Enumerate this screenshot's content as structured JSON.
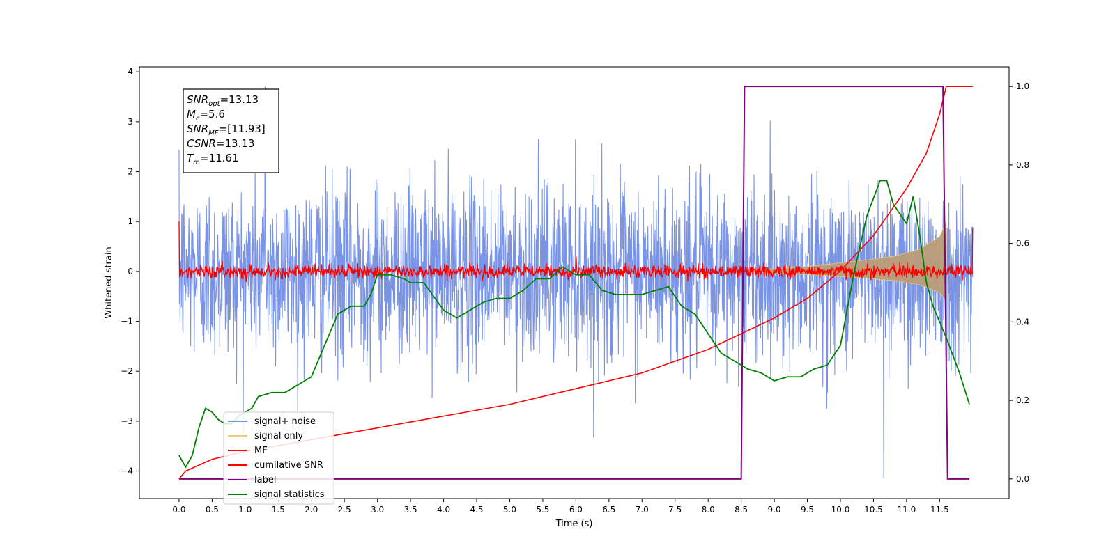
{
  "chart_data": {
    "type": "line",
    "xlabel": "Time (s)",
    "ylabel_left": "Whitened strain",
    "xlim": [
      -0.6,
      12.55
    ],
    "ylim_left": [
      -4.55,
      4.1
    ],
    "ylim_right": [
      -0.05,
      1.05
    ],
    "x_ticks": [
      "0.0",
      "0.5",
      "1.0",
      "1.5",
      "2.0",
      "2.5",
      "3.0",
      "3.5",
      "4.0",
      "4.5",
      "5.0",
      "5.5",
      "6.0",
      "6.5",
      "7.0",
      "7.5",
      "8.0",
      "8.5",
      "9.0",
      "9.5",
      "10.0",
      "10.5",
      "11.0",
      "11.5"
    ],
    "y_ticks_left": [
      "4",
      "3",
      "2",
      "1",
      "0",
      "−1",
      "−2",
      "−3",
      "−4"
    ],
    "y_ticks_right": [
      "1.0",
      "0.8",
      "0.6",
      "0.4",
      "0.2",
      "0.0"
    ],
    "grid": false,
    "legend_position": "lower-left",
    "colors": {
      "signal_noise": "#7994e6",
      "signal_only": "#f5c97a",
      "signal_fill": "#bb9d78",
      "mf": "#ff0000",
      "cumulative_snr": "#ff0000",
      "label": "#800080",
      "signal_statistics": "#008000"
    },
    "annotation": {
      "lines": [
        {
          "base": "SNR",
          "sub": "opt",
          "value": "=13.13"
        },
        {
          "base": "M",
          "sub": "c",
          "value": "=5.6"
        },
        {
          "base": "SNR",
          "sub": "MF",
          "value": "=[11.93]"
        },
        {
          "base": "CSNR",
          "sub": "",
          "value": "=13.13"
        },
        {
          "base": "T",
          "sub": "m",
          "value": "=11.61"
        }
      ]
    },
    "series": [
      {
        "name": "signal+ noise",
        "axis": "left",
        "kind": "noise_band",
        "x_range": [
          0.0,
          12.0
        ],
        "envelope_upper": 2.2,
        "envelope_lower": -2.3,
        "max": 3.7,
        "min": -4.15
      },
      {
        "name": "signal only",
        "axis": "left",
        "kind": "chirp_envelope",
        "x": [
          8.6,
          9.5,
          10.2,
          10.8,
          11.2,
          11.5,
          11.6
        ],
        "amplitude": [
          0.02,
          0.1,
          0.2,
          0.3,
          0.45,
          0.7,
          1.0
        ]
      },
      {
        "name": "MF",
        "axis": "left",
        "kind": "noise_small",
        "x_range": [
          0.0,
          12.0
        ],
        "amplitude": 0.12,
        "start_value": 1.0,
        "end_value": 0.88
      },
      {
        "name": "cumilative SNR",
        "axis": "right",
        "x": [
          0.0,
          0.1,
          0.5,
          1.0,
          2.0,
          3.0,
          4.0,
          5.0,
          6.0,
          7.0,
          8.0,
          8.5,
          9.0,
          9.5,
          10.0,
          10.5,
          11.0,
          11.3,
          11.5,
          11.6,
          12.0
        ],
        "values": [
          0.0,
          0.02,
          0.05,
          0.07,
          0.1,
          0.13,
          0.16,
          0.19,
          0.23,
          0.27,
          0.33,
          0.37,
          0.41,
          0.46,
          0.53,
          0.62,
          0.74,
          0.83,
          0.93,
          1.0,
          1.0
        ]
      },
      {
        "name": "label",
        "axis": "right",
        "x": [
          0.0,
          8.5,
          8.55,
          11.55,
          11.62,
          11.95
        ],
        "values": [
          0.0,
          0.0,
          1.0,
          1.0,
          0.0,
          0.0
        ]
      },
      {
        "name": "signal statistics",
        "axis": "right",
        "x": [
          0.0,
          0.1,
          0.2,
          0.3,
          0.4,
          0.5,
          0.6,
          0.7,
          0.8,
          0.9,
          1.0,
          1.1,
          1.2,
          1.4,
          1.6,
          1.8,
          1.9,
          2.0,
          2.2,
          2.4,
          2.6,
          2.8,
          2.9,
          3.0,
          3.2,
          3.4,
          3.5,
          3.7,
          4.0,
          4.2,
          4.4,
          4.6,
          4.8,
          5.0,
          5.2,
          5.4,
          5.6,
          5.8,
          6.0,
          6.2,
          6.4,
          6.6,
          6.8,
          7.0,
          7.2,
          7.4,
          7.6,
          7.8,
          8.0,
          8.2,
          8.4,
          8.6,
          8.8,
          9.0,
          9.2,
          9.4,
          9.6,
          9.8,
          10.0,
          10.2,
          10.4,
          10.6,
          10.7,
          10.8,
          11.0,
          11.1,
          11.2,
          11.3,
          11.4,
          11.6,
          11.8,
          11.95
        ],
        "values": [
          0.06,
          0.03,
          0.06,
          0.13,
          0.18,
          0.17,
          0.15,
          0.14,
          0.14,
          0.16,
          0.17,
          0.18,
          0.21,
          0.22,
          0.22,
          0.24,
          0.25,
          0.26,
          0.34,
          0.42,
          0.44,
          0.44,
          0.47,
          0.52,
          0.52,
          0.51,
          0.5,
          0.5,
          0.43,
          0.41,
          0.43,
          0.45,
          0.46,
          0.46,
          0.48,
          0.51,
          0.51,
          0.54,
          0.52,
          0.52,
          0.48,
          0.47,
          0.47,
          0.47,
          0.48,
          0.49,
          0.44,
          0.42,
          0.37,
          0.32,
          0.3,
          0.28,
          0.27,
          0.25,
          0.26,
          0.26,
          0.28,
          0.29,
          0.34,
          0.52,
          0.67,
          0.76,
          0.76,
          0.7,
          0.65,
          0.72,
          0.62,
          0.5,
          0.44,
          0.36,
          0.27,
          0.19
        ]
      }
    ]
  }
}
